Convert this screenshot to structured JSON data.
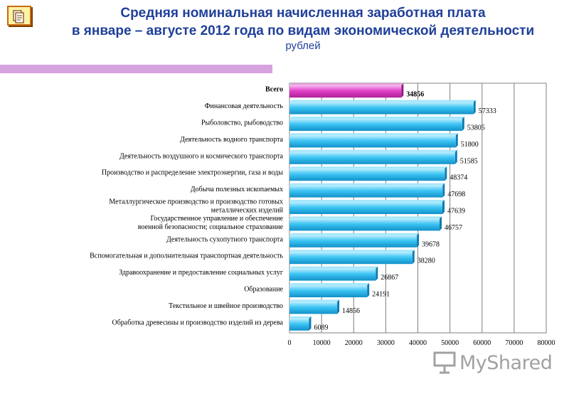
{
  "header": {
    "title_line1": "Средняя номинальная начисленная заработная плата",
    "title_line2": "в январе – августе 2012 года по видам экономической деятельности",
    "subtitle": "рублей",
    "icon": "document-pencil-icon"
  },
  "watermark": {
    "text": "MyShared",
    "icon": "presentation-board-icon"
  },
  "colors": {
    "highlight_bar": "#e040c8",
    "bar": "#3cc4f4",
    "title": "#1f3f9a",
    "divider": "#d6a2df"
  },
  "chart_data": {
    "type": "bar",
    "orientation": "horizontal",
    "categories": [
      [
        "Всего"
      ],
      [
        "Финансовая деятельность"
      ],
      [
        "Рыболовство, рыбоводство"
      ],
      [
        "Деятельность водного транспорта"
      ],
      [
        "Деятельность воздушного и космического транспорта"
      ],
      [
        "Производство и распределение электроэнергии, газа и воды"
      ],
      [
        "Добыча полезных ископаемых"
      ],
      [
        "Металлургическое производство и производство готовых",
        "металлических изделий"
      ],
      [
        "Государственное управление и обеспечение",
        "военной безопасности; социальное страхование"
      ],
      [
        "Деятельность сухопутного транспорта"
      ],
      [
        "Вспомогательная и дополнительная транспортная деятельность"
      ],
      [
        "Здравоохранение и предоставление социальных услуг"
      ],
      [
        "Образование"
      ],
      [
        "Текстильное и швейное производство"
      ],
      [
        "Обработка древесины и производство изделий из дерева"
      ]
    ],
    "values": [
      34856,
      57333,
      53805,
      51800,
      51585,
      48374,
      47698,
      47639,
      46757,
      39678,
      38280,
      26867,
      24191,
      14856,
      6089
    ],
    "value_labels": [
      "34856",
      "57333",
      "53805",
      "51800",
      "51585",
      "48374",
      "47698",
      "47639",
      "46757",
      "39678",
      "38280",
      "26867",
      "24191",
      "14856",
      "6089"
    ],
    "highlight_index": 0,
    "xlim": [
      0,
      80000
    ],
    "xticks": [
      "0",
      "10000",
      "20000",
      "30000",
      "40000",
      "50000",
      "60000",
      "70000",
      "80000"
    ],
    "grid": true
  }
}
